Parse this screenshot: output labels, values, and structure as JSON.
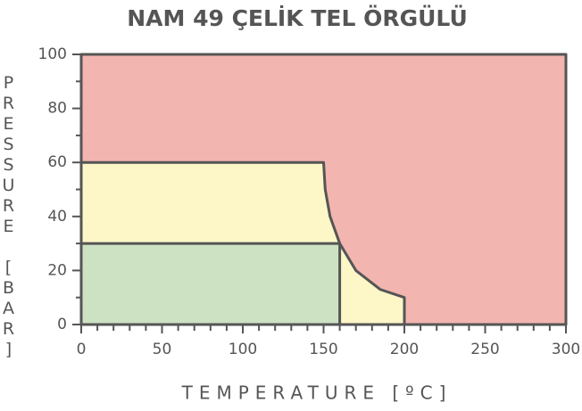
{
  "chart_data": {
    "type": "region",
    "title": "NAM 49 ÇELİK TEL ÖRGÜLÜ",
    "x_label": "TEMPERATURE [ºC]",
    "y_label": "PRESSURE [BAR]",
    "series": [
      {
        "color": "#f2b5b0",
        "x": [
          0,
          300,
          300,
          0
        ],
        "values": [
          0,
          0,
          100,
          100
        ]
      },
      {
        "color": "#fdf7c8",
        "x": [
          0,
          150,
          151,
          154,
          160,
          170,
          185,
          200,
          200,
          0
        ],
        "values": [
          60,
          60,
          50,
          40,
          30,
          20,
          13,
          10,
          0,
          0
        ]
      },
      {
        "color": "#cde2c3",
        "x": [
          0,
          160,
          160,
          0
        ],
        "values": [
          30,
          30,
          0,
          0
        ]
      }
    ],
    "xlim": [
      0,
      300
    ],
    "ylim": [
      0,
      100
    ],
    "xticks": [
      0,
      50,
      100,
      150,
      200,
      250,
      300
    ],
    "yticks": [
      0,
      20,
      40,
      60,
      80,
      100
    ],
    "xminorticks": [
      10,
      20,
      30,
      40,
      60,
      70,
      80,
      90,
      110,
      120,
      130,
      140,
      160,
      170,
      180,
      190,
      210,
      220,
      230,
      240,
      260,
      270,
      280,
      290
    ],
    "yminorticks": [
      10,
      30,
      50,
      70,
      90
    ]
  }
}
